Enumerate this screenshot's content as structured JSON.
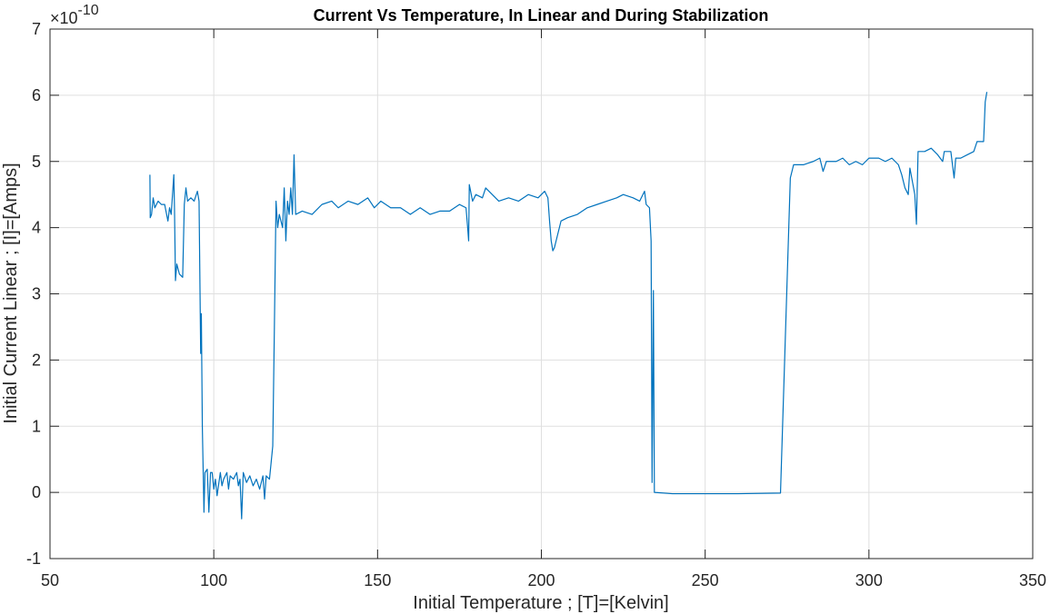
{
  "chart_data": {
    "type": "line",
    "title": "Current Vs Temperature, In Linear and During Stabilization",
    "xlabel": "Initial Temperature ; [T]=[Kelvin]",
    "ylabel": "Initial Current Linear ; [I]=[Amps]",
    "y_multiplier": {
      "base": "×10",
      "exponent": "-10"
    },
    "xlim": [
      50,
      350
    ],
    "xticks": [
      50,
      100,
      150,
      200,
      250,
      300,
      350
    ],
    "ylim": [
      -1,
      7
    ],
    "yticks": [
      -1,
      0,
      1,
      2,
      3,
      4,
      5,
      6,
      7
    ],
    "grid": true,
    "x": [
      80.5,
      80.6,
      81,
      81.5,
      82,
      83,
      84,
      85,
      86,
      86.5,
      87,
      87.8,
      88,
      88.3,
      88.7,
      89.5,
      90.5,
      91,
      91.5,
      92,
      93,
      94,
      95,
      95.5,
      96,
      96.2,
      96.5,
      97,
      97.3,
      98,
      98.5,
      99,
      99.5,
      100,
      100.5,
      101,
      102,
      102.5,
      103,
      104,
      104.5,
      105,
      106,
      107,
      107.5,
      108,
      108.5,
      109,
      110,
      111,
      112,
      113,
      114,
      115,
      115.5,
      116,
      117,
      118,
      118.5,
      119,
      119.5,
      120,
      121,
      121.5,
      122,
      122.5,
      123,
      123.5,
      124,
      124.5,
      125,
      127,
      130,
      133,
      136,
      138,
      141,
      144,
      147,
      149,
      151,
      154,
      157,
      160,
      163,
      166,
      169,
      172,
      175,
      177,
      177.5,
      177.8,
      178,
      179,
      180,
      182,
      183,
      185,
      187,
      190,
      193,
      196,
      199,
      201,
      202,
      202.5,
      203,
      203.5,
      204,
      205,
      206,
      208,
      211,
      214,
      217,
      220,
      223,
      225,
      228,
      230,
      231.5,
      232,
      233,
      233.5,
      233.8,
      234.2,
      234.5,
      240,
      250,
      260,
      273,
      276,
      277,
      280,
      283,
      285,
      286,
      287,
      290,
      292,
      294,
      296,
      298,
      300,
      303,
      305,
      307,
      309,
      310,
      311,
      312,
      312.5,
      314,
      314.5,
      315,
      317,
      319,
      321,
      322.5,
      323,
      325,
      326,
      326.5,
      328,
      330,
      332,
      333,
      335,
      335.5,
      336
    ],
    "series": [
      {
        "color": "#0072bd",
        "values": [
          4.8,
          4.15,
          4.2,
          4.45,
          4.3,
          4.4,
          4.35,
          4.35,
          4.1,
          4.3,
          4.2,
          4.8,
          4.3,
          3.2,
          3.45,
          3.3,
          3.25,
          4.35,
          4.6,
          4.4,
          4.45,
          4.4,
          4.55,
          4.4,
          2.1,
          2.7,
          1.0,
          -0.3,
          0.3,
          0.35,
          -0.3,
          0.3,
          0.3,
          0.05,
          0.2,
          -0.05,
          0.3,
          0.1,
          0.2,
          0.3,
          0.05,
          0.25,
          0.2,
          0.3,
          0.1,
          0.2,
          -0.4,
          0.3,
          0.15,
          0.25,
          0.1,
          0.2,
          0.05,
          0.25,
          -0.1,
          0.25,
          0.2,
          0.7,
          2.5,
          4.4,
          4.0,
          4.2,
          4.0,
          4.6,
          3.8,
          4.4,
          4.2,
          4.6,
          4.2,
          5.1,
          4.2,
          4.25,
          4.2,
          4.35,
          4.4,
          4.3,
          4.4,
          4.35,
          4.45,
          4.3,
          4.4,
          4.3,
          4.3,
          4.2,
          4.3,
          4.2,
          4.25,
          4.25,
          4.35,
          4.3,
          4.0,
          3.8,
          4.65,
          4.4,
          4.5,
          4.45,
          4.6,
          4.5,
          4.4,
          4.45,
          4.4,
          4.5,
          4.45,
          4.55,
          4.45,
          4.1,
          3.8,
          3.65,
          3.7,
          3.9,
          4.1,
          4.15,
          4.2,
          4.3,
          4.35,
          4.4,
          4.45,
          4.5,
          4.45,
          4.4,
          4.55,
          4.35,
          4.3,
          3.8,
          0.15,
          3.05,
          0.0,
          -0.02,
          -0.02,
          -0.02,
          -0.01,
          4.75,
          4.95,
          4.95,
          5.0,
          5.05,
          4.85,
          5.0,
          5.0,
          5.05,
          4.95,
          5.0,
          4.95,
          5.05,
          5.05,
          5.0,
          5.05,
          4.95,
          4.8,
          4.6,
          4.5,
          4.9,
          4.5,
          4.05,
          5.15,
          5.15,
          5.2,
          5.1,
          5.0,
          5.15,
          5.15,
          4.75,
          5.05,
          5.05,
          5.1,
          5.15,
          5.3,
          5.3,
          5.9,
          6.05
        ]
      }
    ]
  }
}
